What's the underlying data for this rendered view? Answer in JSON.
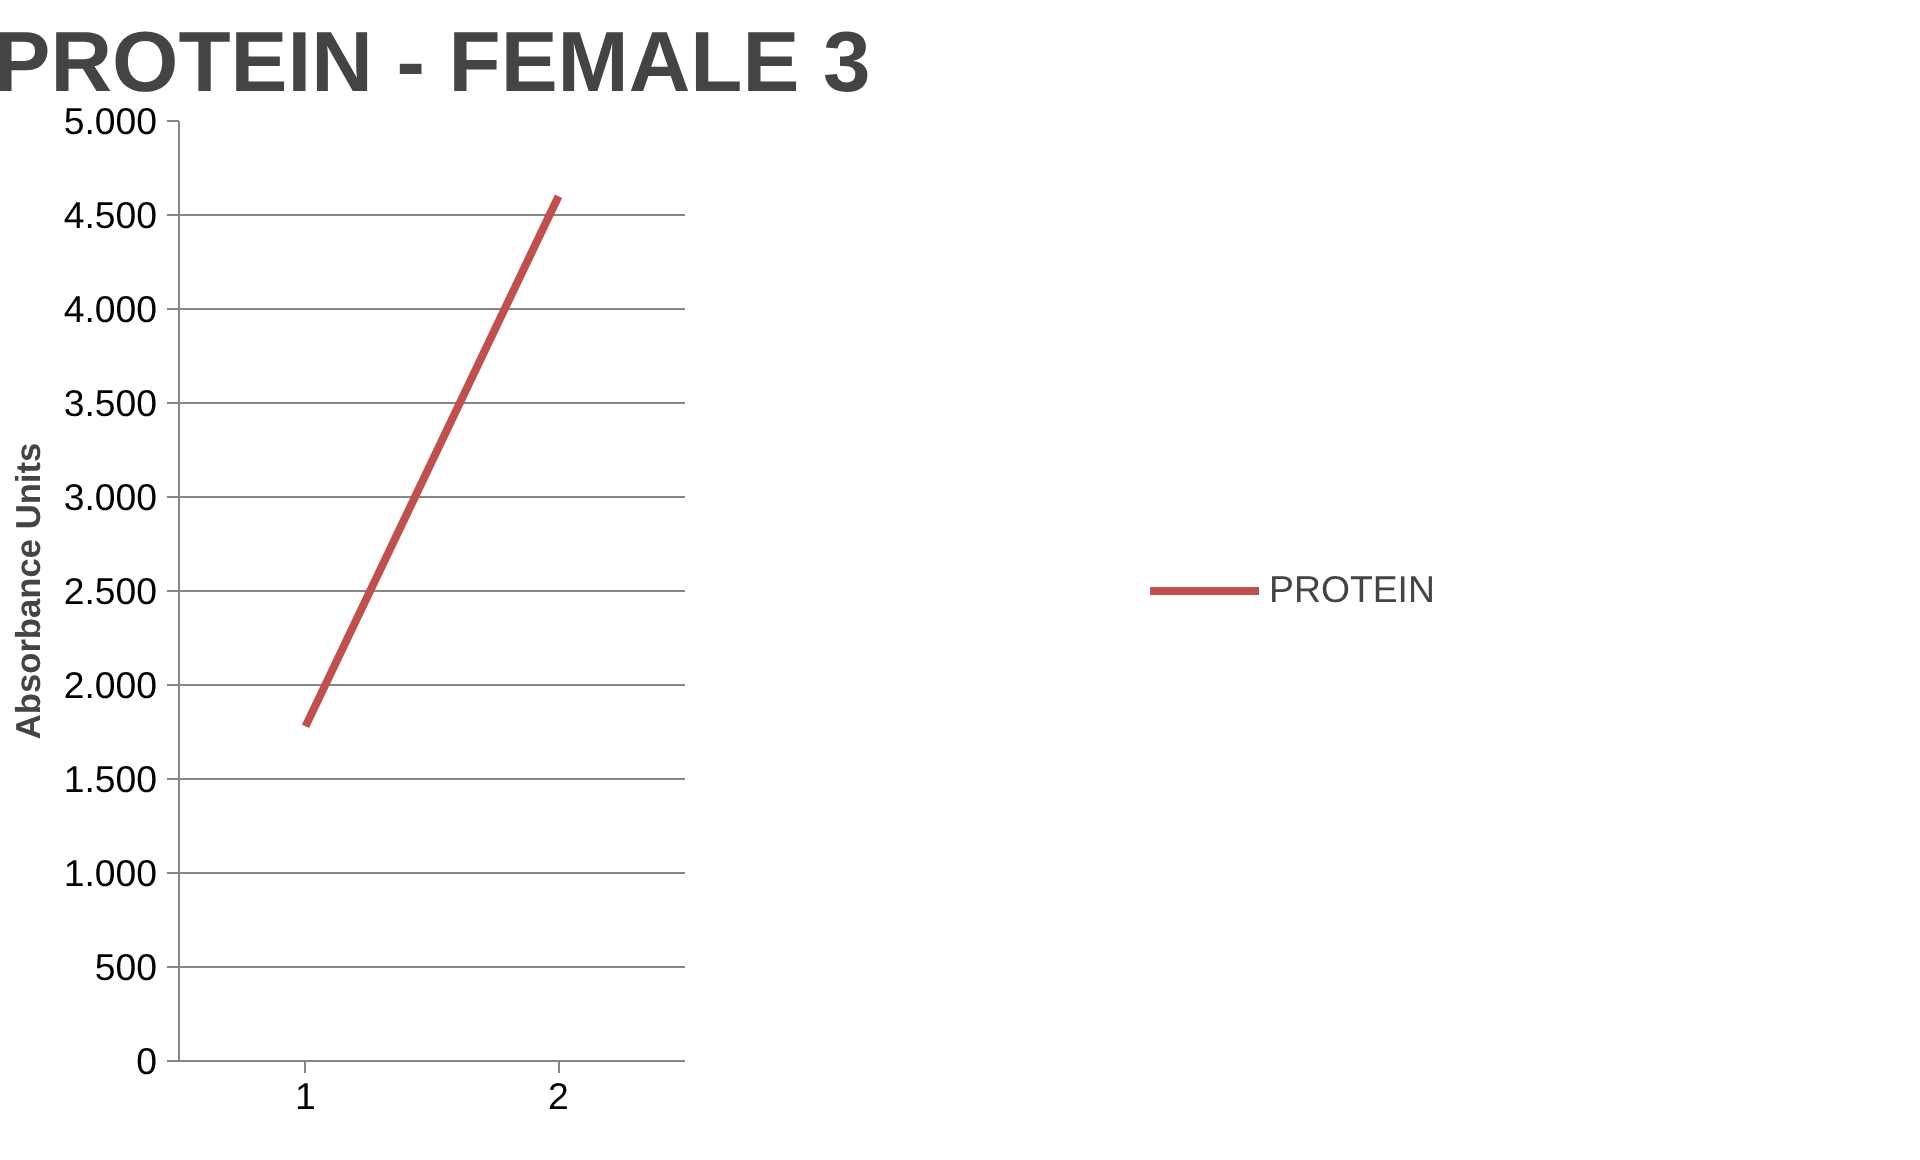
{
  "chart_data": {
    "type": "line",
    "title": "PROTEIN - FEMALE 3",
    "ylabel": "Absorbance Units",
    "categories": [
      "1",
      "2"
    ],
    "series": [
      {
        "name": "PROTEIN",
        "color": "#c0504d",
        "values": [
          1780,
          4600
        ]
      }
    ],
    "ylim": [
      0,
      5000
    ],
    "yticks": [
      {
        "value": 0,
        "label": "0"
      },
      {
        "value": 500,
        "label": "500"
      },
      {
        "value": 1000,
        "label": "1.000"
      },
      {
        "value": 1500,
        "label": "1.500"
      },
      {
        "value": 2000,
        "label": "2.000"
      },
      {
        "value": 2500,
        "label": "2.500"
      },
      {
        "value": 3000,
        "label": "3.000"
      },
      {
        "value": 3500,
        "label": "3.500"
      },
      {
        "value": 4000,
        "label": "4.000"
      },
      {
        "value": 4500,
        "label": "4.500"
      },
      {
        "value": 5000,
        "label": "5.000"
      }
    ],
    "grid": "y",
    "legend": "right",
    "marker": "none",
    "line_style": "solid"
  }
}
